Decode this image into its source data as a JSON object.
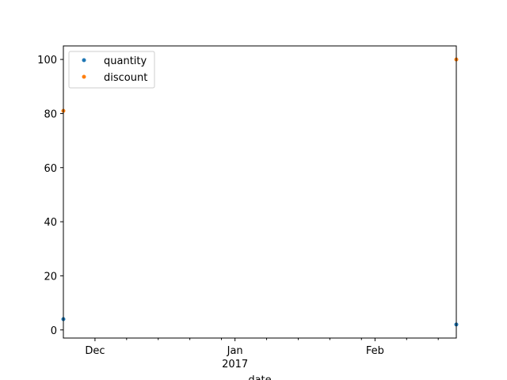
{
  "chart_data": {
    "type": "scatter",
    "title": "",
    "xlabel": "date",
    "ylabel": "",
    "x_axis_type": "date",
    "xlim": [
      "2016-11-24",
      "2017-02-19"
    ],
    "ylim": [
      -3,
      105
    ],
    "y_ticks": [
      0,
      20,
      40,
      60,
      80,
      100
    ],
    "x_major_ticks": [
      {
        "date": "2016-12-01",
        "label": "Dec"
      },
      {
        "date": "2017-01-01",
        "label": "Jan",
        "sublabel": "2017"
      },
      {
        "date": "2017-02-01",
        "label": "Feb"
      }
    ],
    "x_minor_ticks": [
      "2016-12-08",
      "2016-12-15",
      "2016-12-22",
      "2016-12-29",
      "2017-01-08",
      "2017-01-15",
      "2017-01-22",
      "2017-01-29",
      "2017-02-08",
      "2017-02-15"
    ],
    "grid": false,
    "legend_position": "top-left",
    "series": [
      {
        "name": "quantity",
        "color": "#1f77b4",
        "points": [
          {
            "x": "2016-11-24",
            "y": 4
          },
          {
            "x": "2017-02-19",
            "y": 2
          }
        ]
      },
      {
        "name": "discount",
        "color": "#ff7f0e",
        "points": [
          {
            "x": "2016-11-24",
            "y": 81
          },
          {
            "x": "2017-02-19",
            "y": 100
          }
        ]
      }
    ]
  }
}
